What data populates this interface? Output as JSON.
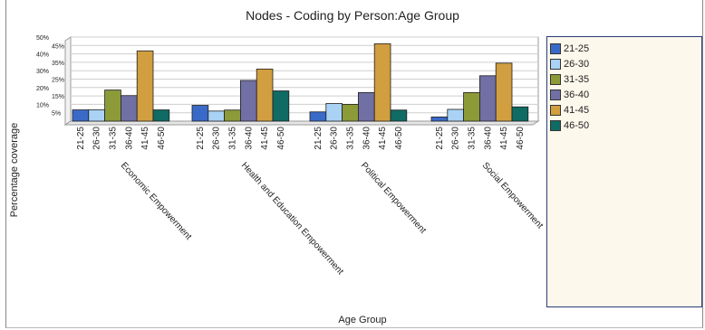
{
  "chart_data": {
    "type": "bar",
    "title": "Nodes - Coding by Person:Age Group",
    "xlabel": "Age Group",
    "ylabel": "Percentage coverage",
    "yticks": [
      "5%",
      "10%",
      "15%",
      "20%",
      "25%",
      "30%",
      "35%",
      "40%",
      "45%",
      "50%"
    ],
    "ylim": [
      0,
      50
    ],
    "age_groups": [
      "21-25",
      "26-30",
      "31-35",
      "36-40",
      "41-45",
      "46-50"
    ],
    "groups": [
      {
        "label": "Economic Empowerment",
        "values": [
          6.7,
          6.7,
          18.5,
          15.2,
          41.8,
          6.7
        ]
      },
      {
        "label": "Health and Education Empowerment",
        "values": [
          9.4,
          6.0,
          6.6,
          24.2,
          31.0,
          18.0
        ]
      },
      {
        "label": "Political Empowerment",
        "values": [
          5.5,
          10.5,
          10.0,
          17.0,
          46.0,
          6.6
        ]
      },
      {
        "label": "Social Empowerment",
        "values": [
          2.5,
          7.0,
          17.0,
          27.0,
          34.5,
          8.5
        ]
      }
    ],
    "colors": [
      "#3a6ac8",
      "#a9d2f4",
      "#8c9a38",
      "#7070a4",
      "#d19e40",
      "#0f6b63"
    ],
    "legend": {
      "position": "right",
      "entries": [
        "21-25",
        "26-30",
        "31-35",
        "36-40",
        "41-45",
        "46-50"
      ]
    },
    "grid": true
  }
}
